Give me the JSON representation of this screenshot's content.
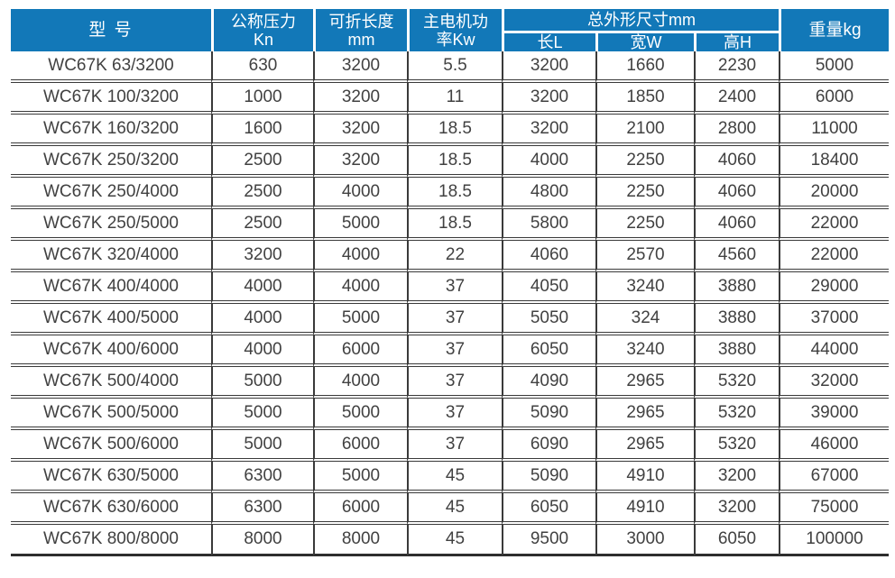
{
  "colors": {
    "header_bg": "#1278b8",
    "header_text": "#ffffff",
    "body_text": "#414141",
    "grid_line": "#3a3a3a",
    "page_bg": "#ffffff"
  },
  "table": {
    "headers": {
      "model": "型 号",
      "pressure_line1": "公称压力",
      "pressure_line2": "Kn",
      "fold_length_line1": "可折长度",
      "fold_length_line2": "mm",
      "motor_power_line1": "主电机功",
      "motor_power_line2": "率Kw",
      "overall_dimensions": "总外形尺寸mm",
      "dim_length": "长L",
      "dim_width": "宽W",
      "dim_height": "高H",
      "weight": "重量kg"
    },
    "rows": [
      [
        "WC67K 63/3200",
        "630",
        "3200",
        "5.5",
        "3200",
        "1660",
        "2230",
        "5000"
      ],
      [
        "WC67K 100/3200",
        "1000",
        "3200",
        "11",
        "3200",
        "1850",
        "2400",
        "6000"
      ],
      [
        "WC67K 160/3200",
        "1600",
        "3200",
        "18.5",
        "3200",
        "2100",
        "2800",
        "11000"
      ],
      [
        "WC67K 250/3200",
        "2500",
        "3200",
        "18.5",
        "4000",
        "2250",
        "4060",
        "18400"
      ],
      [
        "WC67K 250/4000",
        "2500",
        "4000",
        "18.5",
        "4800",
        "2250",
        "4060",
        "20000"
      ],
      [
        "WC67K 250/5000",
        "2500",
        "5000",
        "18.5",
        "5800",
        "2250",
        "4060",
        "22000"
      ],
      [
        "WC67K 320/4000",
        "3200",
        "4000",
        "22",
        "4060",
        "2570",
        "4560",
        "22000"
      ],
      [
        "WC67K 400/4000",
        "4000",
        "4000",
        "37",
        "4050",
        "3240",
        "3880",
        "29000"
      ],
      [
        "WC67K 400/5000",
        "4000",
        "5000",
        "37",
        "5050",
        "324",
        "3880",
        "37000"
      ],
      [
        "WC67K 400/6000",
        "4000",
        "6000",
        "37",
        "6050",
        "3240",
        "3880",
        "44000"
      ],
      [
        "WC67K 500/4000",
        "5000",
        "4000",
        "37",
        "4090",
        "2965",
        "5320",
        "32000"
      ],
      [
        "WC67K 500/5000",
        "5000",
        "5000",
        "37",
        "5090",
        "2965",
        "5320",
        "39000"
      ],
      [
        "WC67K 500/6000",
        "5000",
        "6000",
        "37",
        "6090",
        "2965",
        "5320",
        "46000"
      ],
      [
        "WC67K 630/5000",
        "6300",
        "5000",
        "45",
        "5090",
        "4910",
        "3200",
        "67000"
      ],
      [
        "WC67K 630/6000",
        "6300",
        "6000",
        "45",
        "6050",
        "4910",
        "3200",
        "75000"
      ],
      [
        "WC67K 800/8000",
        "8000",
        "8000",
        "45",
        "9500",
        "3000",
        "6050",
        "100000"
      ]
    ]
  }
}
